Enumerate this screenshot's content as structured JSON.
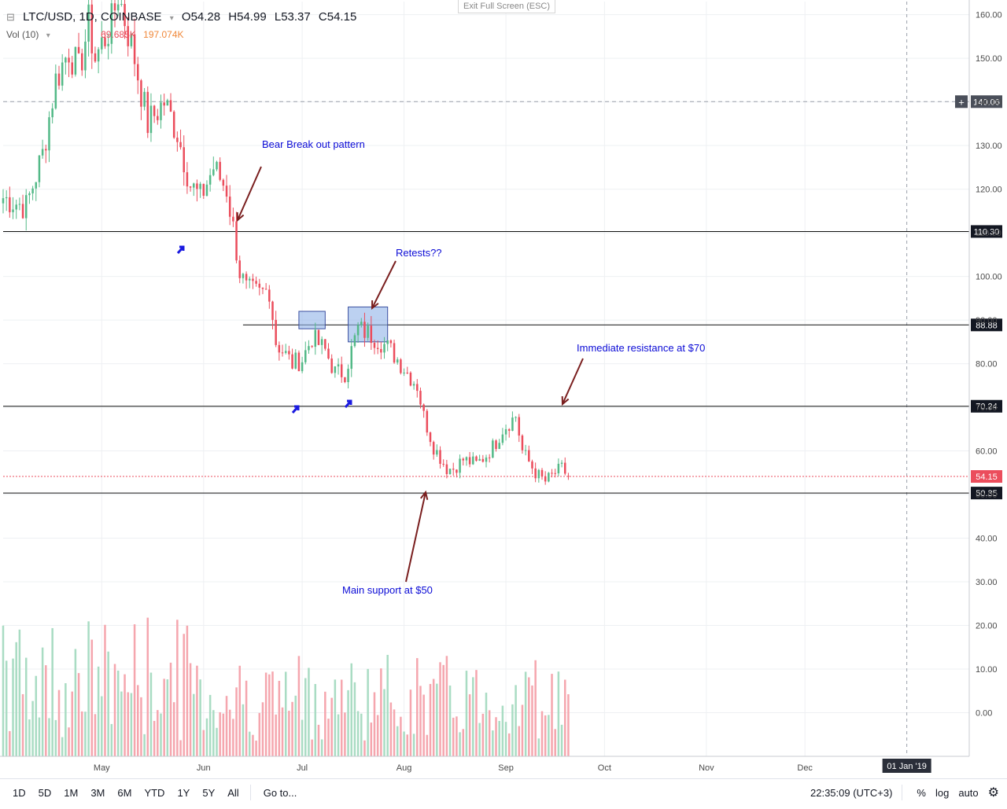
{
  "legend": {
    "symbol": "LTC/USD, 1D, COINBASE",
    "open_key": "O",
    "open": "54.28",
    "high_key": "H",
    "high": "54.99",
    "low_key": "L",
    "low": "53.37",
    "close_key": "C",
    "close": "54.15",
    "vol_label": "Vol (10)",
    "vol_value": "69.685K",
    "vol_ma": "197.074K"
  },
  "exit_fullscreen": "Exit Full Screen (ESC)",
  "bottom_bar": {
    "ranges": [
      "1D",
      "5D",
      "1M",
      "3M",
      "6M",
      "YTD",
      "1Y",
      "5Y",
      "All"
    ],
    "goto": "Go to...",
    "time": "22:35:09 (UTC+3)",
    "percent": "%",
    "log": "log",
    "auto": "auto"
  },
  "colors": {
    "up": "#53b987",
    "down": "#eb4d5c",
    "vol_up": "#a9dcc3",
    "vol_down": "#f5a6ae",
    "annotation_text": "#0b0bd6",
    "arrow": "#7a1f1f",
    "box_fill": "#8fb3e8",
    "box_stroke": "#3b4fa0"
  },
  "chart_data": {
    "type": "candlestick",
    "title": "LTC/USD, 1D, COINBASE",
    "price_axis": {
      "ylim": [
        -10,
        163
      ],
      "ticks": [
        "0.00",
        "10.00",
        "20.00",
        "30.00",
        "40.00",
        "50.00",
        "60.00",
        "70.00",
        "80.00",
        "90.00",
        "100.00",
        "110.00",
        "120.00",
        "130.00",
        "140.00",
        "150.00",
        "160.00"
      ]
    },
    "time_axis": {
      "labels": [
        {
          "text": "May",
          "date": "2018-05-01"
        },
        {
          "text": "Jun",
          "date": "2018-06-01"
        },
        {
          "text": "Jul",
          "date": "2018-07-01"
        },
        {
          "text": "Aug",
          "date": "2018-08-01"
        },
        {
          "text": "Sep",
          "date": "2018-09-01"
        },
        {
          "text": "Oct",
          "date": "2018-10-01"
        },
        {
          "text": "Nov",
          "date": "2018-11-01"
        },
        {
          "text": "Dec",
          "date": "2018-12-01"
        }
      ],
      "range": [
        "2018-04-01",
        "2019-01-20"
      ],
      "highlight": {
        "text": "01 Jan '19",
        "date": "2019-01-01"
      }
    },
    "price_anchors": [
      [
        "2018-04-01",
        118
      ],
      [
        "2018-04-08",
        116
      ],
      [
        "2018-04-13",
        128
      ],
      [
        "2018-04-17",
        145
      ],
      [
        "2018-04-21",
        152
      ],
      [
        "2018-04-24",
        147
      ],
      [
        "2018-04-27",
        158
      ],
      [
        "2018-04-29",
        150
      ],
      [
        "2018-05-04",
        158
      ],
      [
        "2018-05-06",
        165
      ],
      [
        "2018-05-11",
        150
      ],
      [
        "2018-05-15",
        135
      ],
      [
        "2018-05-20",
        140
      ],
      [
        "2018-05-24",
        133
      ],
      [
        "2018-05-28",
        121
      ],
      [
        "2018-05-31",
        118
      ],
      [
        "2018-06-04",
        125
      ],
      [
        "2018-06-08",
        120
      ],
      [
        "2018-06-10",
        111
      ],
      [
        "2018-06-12",
        101
      ],
      [
        "2018-06-14",
        97
      ],
      [
        "2018-06-18",
        96
      ],
      [
        "2018-06-21",
        97
      ],
      [
        "2018-06-23",
        85
      ],
      [
        "2018-06-28",
        80
      ],
      [
        "2018-07-01",
        81
      ],
      [
        "2018-07-04",
        86
      ],
      [
        "2018-07-08",
        83
      ],
      [
        "2018-07-11",
        78
      ],
      [
        "2018-07-14",
        78
      ],
      [
        "2018-07-18",
        88
      ],
      [
        "2018-07-21",
        87
      ],
      [
        "2018-07-25",
        85
      ],
      [
        "2018-07-28",
        83
      ],
      [
        "2018-08-01",
        79
      ],
      [
        "2018-08-05",
        75
      ],
      [
        "2018-08-07",
        68
      ],
      [
        "2018-08-10",
        61
      ],
      [
        "2018-08-14",
        56
      ],
      [
        "2018-08-16",
        56
      ],
      [
        "2018-08-19",
        58
      ],
      [
        "2018-08-23",
        57
      ],
      [
        "2018-08-26",
        59
      ],
      [
        "2018-08-29",
        62
      ],
      [
        "2018-08-31",
        65
      ],
      [
        "2018-09-04",
        68
      ],
      [
        "2018-09-06",
        60
      ],
      [
        "2018-09-10",
        55
      ],
      [
        "2018-09-13",
        53
      ],
      [
        "2018-09-16",
        55
      ],
      [
        "2018-09-18",
        56
      ],
      [
        "2018-09-20",
        54.15
      ]
    ],
    "last": {
      "open": 54.28,
      "high": 54.99,
      "low": 53.37,
      "close": 54.15
    },
    "volume": {
      "axis_ticks": [
        "0.00",
        "10.00",
        "20.00",
        "30.00"
      ],
      "ma_label": "Vol (10)"
    },
    "horizontal_levels": [
      {
        "label": "140.06",
        "value": 140.06,
        "style": "dashed"
      },
      {
        "label": "110.30",
        "value": 110.3,
        "style": "solid"
      },
      {
        "label": "88.88",
        "value": 88.88,
        "style": "solid",
        "from": "2018-06-13"
      },
      {
        "label": "70.24",
        "value": 70.24,
        "style": "solid"
      },
      {
        "label": "54.15",
        "value": 54.15,
        "style": "dotted-red"
      },
      {
        "label": "50.35",
        "value": 50.35,
        "style": "solid"
      }
    ],
    "annotations": [
      {
        "text": "Bear Break out pattern"
      },
      {
        "text": "Retests??"
      },
      {
        "text": "Immediate resistance at $70"
      },
      {
        "text": "Main support at $50"
      }
    ],
    "zones": [
      {
        "from": "2018-06-30",
        "to": "2018-07-08",
        "low": 88,
        "high": 92
      },
      {
        "from": "2018-07-15",
        "to": "2018-07-27",
        "low": 85,
        "high": 93
      }
    ]
  }
}
